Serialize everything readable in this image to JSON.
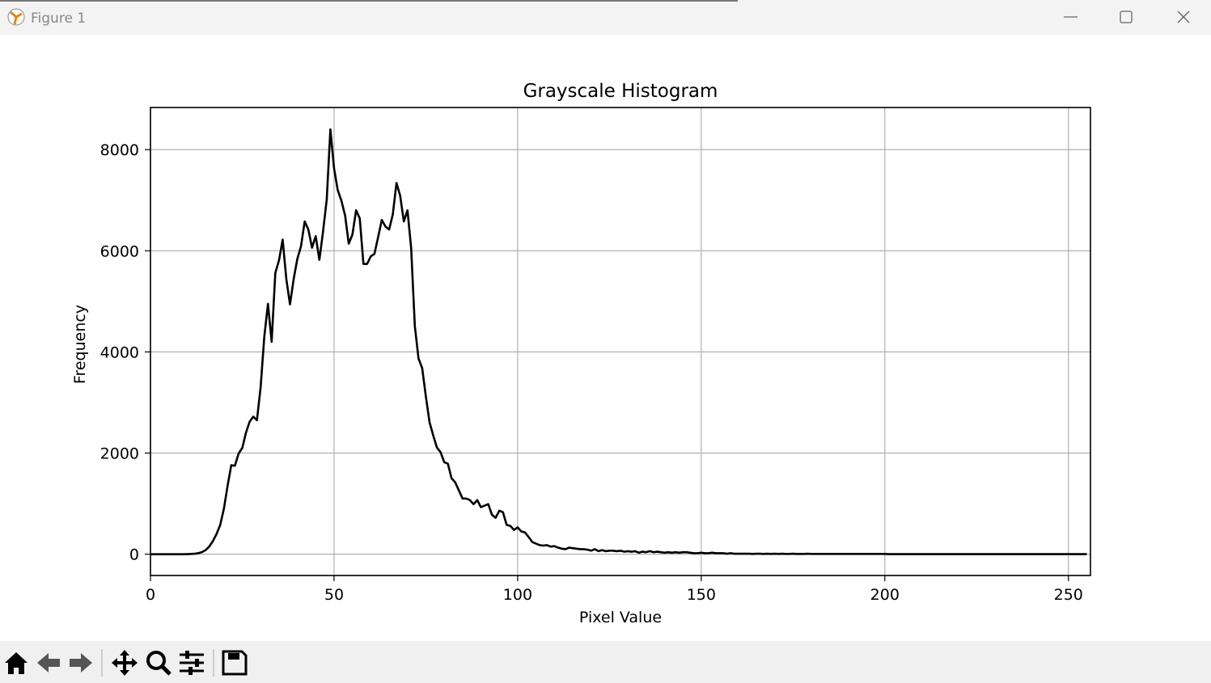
{
  "window_title": "Figure 1",
  "chart_data": {
    "type": "line",
    "title": "Grayscale Histogram",
    "x_label": "Pixel Value",
    "y_label": "Frequency",
    "color": "#000000",
    "grid": true,
    "xlim": [
      0,
      256
    ],
    "ylim": [
      -421,
      8833
    ],
    "xticks": [
      0,
      50,
      100,
      150,
      200,
      250
    ],
    "yticks": [
      0,
      2000,
      4000,
      6000,
      8000
    ],
    "x": [
      0,
      1,
      2,
      3,
      4,
      5,
      6,
      7,
      8,
      9,
      10,
      11,
      12,
      13,
      14,
      15,
      16,
      17,
      18,
      19,
      20,
      21,
      22,
      23,
      24,
      25,
      26,
      27,
      28,
      29,
      30,
      31,
      32,
      33,
      34,
      35,
      36,
      37,
      38,
      39,
      40,
      41,
      42,
      43,
      44,
      45,
      46,
      47,
      48,
      49,
      50,
      51,
      52,
      53,
      54,
      55,
      56,
      57,
      58,
      59,
      60,
      61,
      62,
      63,
      64,
      65,
      66,
      67,
      68,
      69,
      70,
      71,
      72,
      73,
      74,
      75,
      76,
      77,
      78,
      79,
      80,
      81,
      82,
      83,
      84,
      85,
      86,
      87,
      88,
      89,
      90,
      91,
      92,
      93,
      94,
      95,
      96,
      97,
      98,
      99,
      100,
      101,
      102,
      103,
      104,
      105,
      106,
      107,
      108,
      109,
      110,
      111,
      112,
      113,
      114,
      115,
      116,
      117,
      118,
      119,
      120,
      121,
      122,
      123,
      124,
      125,
      126,
      127,
      128,
      129,
      130,
      131,
      132,
      133,
      134,
      135,
      136,
      137,
      138,
      139,
      140,
      141,
      142,
      143,
      144,
      145,
      146,
      147,
      148,
      149,
      150,
      151,
      152,
      153,
      154,
      155,
      156,
      157,
      158,
      159,
      160,
      161,
      162,
      163,
      164,
      165,
      166,
      167,
      168,
      169,
      170,
      171,
      172,
      173,
      174,
      175,
      176,
      177,
      178,
      179,
      180,
      181,
      182,
      183,
      184,
      185,
      186,
      187,
      188,
      189,
      190,
      191,
      192,
      193,
      194,
      195,
      196,
      197,
      198,
      199,
      200,
      201,
      202,
      203,
      204,
      205,
      206,
      207,
      208,
      209,
      210,
      211,
      212,
      213,
      214,
      215,
      216,
      217,
      218,
      219,
      220,
      221,
      222,
      223,
      224,
      225,
      226,
      227,
      228,
      229,
      230,
      231,
      232,
      233,
      234,
      235,
      236,
      237,
      238,
      239,
      240,
      241,
      242,
      243,
      244,
      245,
      246,
      247,
      248,
      249,
      250,
      251,
      252,
      253,
      254,
      255
    ],
    "values": [
      0,
      0,
      0,
      0,
      0,
      0,
      0,
      0,
      0,
      0,
      2,
      5,
      10,
      20,
      40,
      80,
      150,
      260,
      400,
      580,
      900,
      1350,
      1760,
      1750,
      1990,
      2100,
      2400,
      2620,
      2720,
      2650,
      3300,
      4300,
      4950,
      4200,
      5560,
      5810,
      6220,
      5440,
      4940,
      5440,
      5840,
      6090,
      6580,
      6420,
      6060,
      6290,
      5820,
      6380,
      7010,
      8400,
      7630,
      7200,
      6990,
      6700,
      6140,
      6320,
      6800,
      6640,
      5740,
      5740,
      5890,
      5940,
      6270,
      6610,
      6480,
      6420,
      6720,
      7340,
      7090,
      6580,
      6800,
      6050,
      4510,
      3870,
      3680,
      3120,
      2610,
      2350,
      2110,
      2020,
      1820,
      1790,
      1500,
      1420,
      1260,
      1100,
      1100,
      1070,
      990,
      1070,
      930,
      960,
      990,
      780,
      720,
      860,
      830,
      580,
      560,
      480,
      530,
      450,
      430,
      340,
      240,
      210,
      180,
      170,
      180,
      150,
      160,
      130,
      110,
      100,
      130,
      120,
      110,
      100,
      100,
      90,
      70,
      100,
      60,
      80,
      60,
      70,
      70,
      60,
      70,
      50,
      60,
      50,
      60,
      30,
      50,
      40,
      60,
      40,
      50,
      40,
      30,
      40,
      30,
      40,
      30,
      40,
      40,
      30,
      20,
      20,
      30,
      20,
      20,
      30,
      20,
      20,
      20,
      10,
      20,
      10,
      10,
      10,
      10,
      10,
      5,
      10,
      10,
      5,
      10,
      5,
      10,
      5,
      10,
      5,
      5,
      10,
      5,
      5,
      5,
      10,
      5,
      5,
      5,
      5,
      5,
      5,
      5,
      5,
      5,
      5,
      5,
      5,
      5,
      5,
      5,
      5,
      5,
      5,
      5,
      5,
      5,
      2,
      2,
      2,
      2,
      2,
      2,
      2,
      2,
      2,
      2,
      2,
      2,
      2,
      2,
      2,
      2,
      2,
      2,
      2,
      2,
      2,
      2,
      2,
      2,
      2,
      2,
      2,
      2,
      2,
      2,
      2,
      2,
      2,
      2,
      2,
      2,
      2,
      2,
      2,
      2,
      2,
      2,
      2,
      2,
      2,
      2,
      2,
      2,
      2,
      2,
      2,
      2,
      2,
      2,
      2
    ]
  }
}
